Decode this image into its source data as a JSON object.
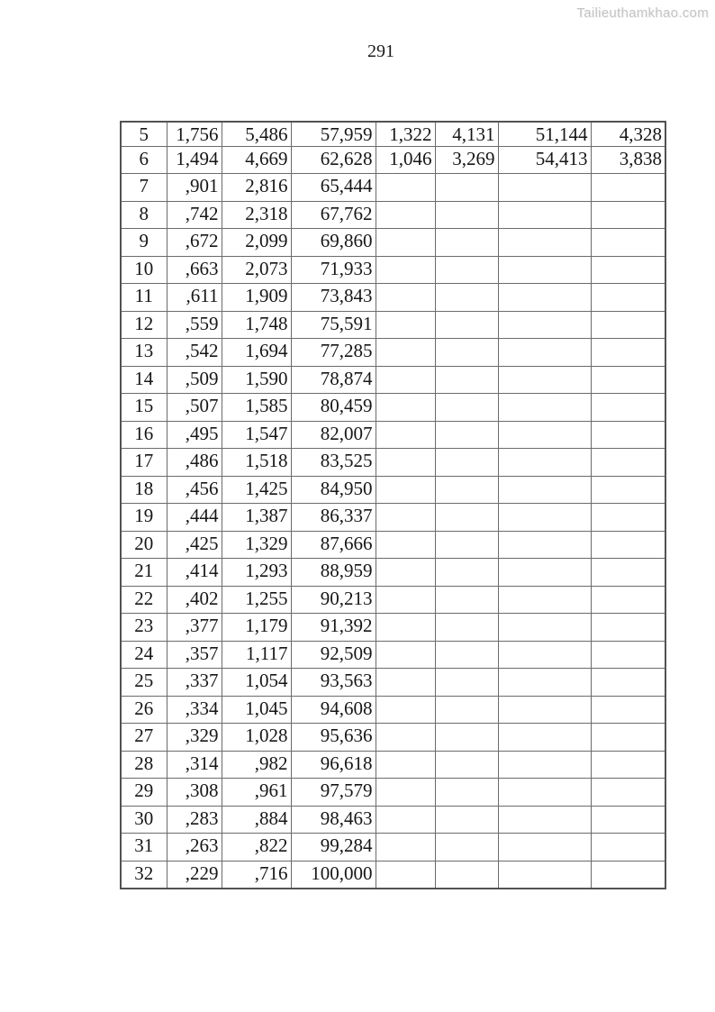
{
  "watermark": "Tailieuthamkhao.com",
  "page_number": "291",
  "table": {
    "rows": [
      [
        "5",
        "1,756",
        "5,486",
        "57,959",
        "1,322",
        "4,131",
        "51,144",
        "4,328"
      ],
      [
        "6",
        "1,494",
        "4,669",
        "62,628",
        "1,046",
        "3,269",
        "54,413",
        "3,838"
      ],
      [
        "7",
        ",901",
        "2,816",
        "65,444",
        "",
        "",
        "",
        ""
      ],
      [
        "8",
        ",742",
        "2,318",
        "67,762",
        "",
        "",
        "",
        ""
      ],
      [
        "9",
        ",672",
        "2,099",
        "69,860",
        "",
        "",
        "",
        ""
      ],
      [
        "10",
        ",663",
        "2,073",
        "71,933",
        "",
        "",
        "",
        ""
      ],
      [
        "11",
        ",611",
        "1,909",
        "73,843",
        "",
        "",
        "",
        ""
      ],
      [
        "12",
        ",559",
        "1,748",
        "75,591",
        "",
        "",
        "",
        ""
      ],
      [
        "13",
        ",542",
        "1,694",
        "77,285",
        "",
        "",
        "",
        ""
      ],
      [
        "14",
        ",509",
        "1,590",
        "78,874",
        "",
        "",
        "",
        ""
      ],
      [
        "15",
        ",507",
        "1,585",
        "80,459",
        "",
        "",
        "",
        ""
      ],
      [
        "16",
        ",495",
        "1,547",
        "82,007",
        "",
        "",
        "",
        ""
      ],
      [
        "17",
        ",486",
        "1,518",
        "83,525",
        "",
        "",
        "",
        ""
      ],
      [
        "18",
        ",456",
        "1,425",
        "84,950",
        "",
        "",
        "",
        ""
      ],
      [
        "19",
        ",444",
        "1,387",
        "86,337",
        "",
        "",
        "",
        ""
      ],
      [
        "20",
        ",425",
        "1,329",
        "87,666",
        "",
        "",
        "",
        ""
      ],
      [
        "21",
        ",414",
        "1,293",
        "88,959",
        "",
        "",
        "",
        ""
      ],
      [
        "22",
        ",402",
        "1,255",
        "90,213",
        "",
        "",
        "",
        ""
      ],
      [
        "23",
        ",377",
        "1,179",
        "91,392",
        "",
        "",
        "",
        ""
      ],
      [
        "24",
        ",357",
        "1,117",
        "92,509",
        "",
        "",
        "",
        ""
      ],
      [
        "25",
        ",337",
        "1,054",
        "93,563",
        "",
        "",
        "",
        ""
      ],
      [
        "26",
        ",334",
        "1,045",
        "94,608",
        "",
        "",
        "",
        ""
      ],
      [
        "27",
        ",329",
        "1,028",
        "95,636",
        "",
        "",
        "",
        ""
      ],
      [
        "28",
        ",314",
        ",982",
        "96,618",
        "",
        "",
        "",
        ""
      ],
      [
        "29",
        ",308",
        ",961",
        "97,579",
        "",
        "",
        "",
        ""
      ],
      [
        "30",
        ",283",
        ",884",
        "98,463",
        "",
        "",
        "",
        ""
      ],
      [
        "31",
        ",263",
        ",822",
        "99,284",
        "",
        "",
        "",
        ""
      ],
      [
        "32",
        ",229",
        ",716",
        "100,000",
        "",
        "",
        "",
        ""
      ]
    ]
  }
}
